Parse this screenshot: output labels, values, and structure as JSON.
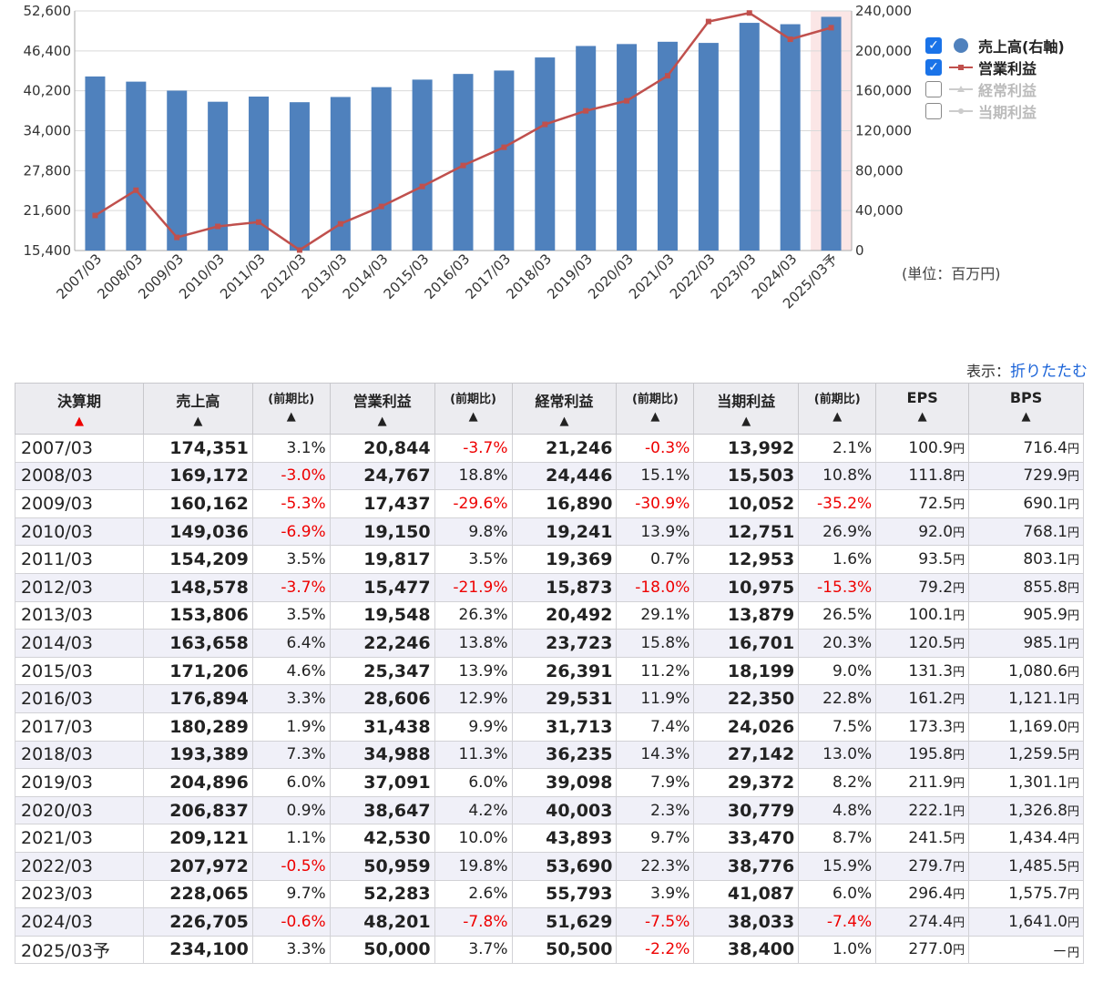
{
  "chart_data": {
    "type": "bar",
    "categories": [
      "2007/03",
      "2008/03",
      "2009/03",
      "2010/03",
      "2011/03",
      "2012/03",
      "2013/03",
      "2014/03",
      "2015/03",
      "2016/03",
      "2017/03",
      "2018/03",
      "2019/03",
      "2020/03",
      "2021/03",
      "2022/03",
      "2023/03",
      "2024/03",
      "2025/03予"
    ],
    "series": [
      {
        "name": "売上高(右軸)",
        "type": "bar",
        "axis": "right",
        "color": "#4f81bd",
        "values": [
          174351,
          169172,
          160162,
          149036,
          154209,
          148578,
          153806,
          163658,
          171206,
          176894,
          180289,
          193389,
          204896,
          206837,
          209121,
          207972,
          228065,
          226705,
          234100
        ]
      },
      {
        "name": "営業利益",
        "type": "line",
        "axis": "left",
        "color": "#c0504d",
        "values": [
          20844,
          24767,
          17437,
          19150,
          19817,
          15477,
          19548,
          22246,
          25347,
          28606,
          31438,
          34988,
          37091,
          38647,
          42530,
          50959,
          52283,
          48201,
          50000
        ]
      },
      {
        "name": "経常利益",
        "type": "line",
        "axis": "left",
        "visible": false
      },
      {
        "name": "当期利益",
        "type": "line",
        "axis": "left",
        "visible": false
      }
    ],
    "left_ticks": [
      "52,600",
      "46,400",
      "40,200",
      "34,000",
      "27,800",
      "21,600",
      "15,400"
    ],
    "right_ticks": [
      "240,000",
      "200,000",
      "160,000",
      "120,000",
      "80,000",
      "40,000",
      "0"
    ],
    "left_range": [
      15400,
      52600
    ],
    "right_range": [
      0,
      240000
    ],
    "forecast_highlight": "2025/03予",
    "unit_note": "(単位：百万円)",
    "legend_placement": "right"
  },
  "legend": [
    {
      "label": "売上高(右軸)",
      "checked": true,
      "icon": "circle-icon",
      "color": "#4f81bd"
    },
    {
      "label": "営業利益",
      "checked": true,
      "icon": "line-marker-icon",
      "color": "#c0504d"
    },
    {
      "label": "経常利益",
      "checked": false,
      "icon": "line-marker-icon",
      "color": "#cccccc"
    },
    {
      "label": "当期利益",
      "checked": false,
      "icon": "line-marker-icon",
      "color": "#cccccc"
    }
  ],
  "display": {
    "label": "表示：",
    "toggle_link": "折りたたむ"
  },
  "table": {
    "headers": [
      {
        "label": "決算期",
        "arrow": "▲",
        "arrow_color": "red",
        "small": false
      },
      {
        "label": "売上高",
        "arrow": "▲",
        "small": false
      },
      {
        "label": "(前期比)",
        "arrow": "▲",
        "small": true
      },
      {
        "label": "営業利益",
        "arrow": "▲",
        "small": false
      },
      {
        "label": "(前期比)",
        "arrow": "▲",
        "small": true
      },
      {
        "label": "経常利益",
        "arrow": "▲",
        "small": false
      },
      {
        "label": "(前期比)",
        "arrow": "▲",
        "small": true
      },
      {
        "label": "当期利益",
        "arrow": "▲",
        "small": false
      },
      {
        "label": "(前期比)",
        "arrow": "▲",
        "small": true
      },
      {
        "label": "EPS",
        "arrow": "▲",
        "small": false
      },
      {
        "label": "BPS",
        "arrow": "▲",
        "small": false
      }
    ],
    "unit_yen": "円",
    "rows": [
      {
        "period": "2007/03",
        "sales": "174,351",
        "sales_chg": "3.1%",
        "op": "20,844",
        "op_chg": "-3.7%",
        "ord": "21,246",
        "ord_chg": "-0.3%",
        "net": "13,992",
        "net_chg": "2.1%",
        "eps": "100.9",
        "bps": "716.4"
      },
      {
        "period": "2008/03",
        "sales": "169,172",
        "sales_chg": "-3.0%",
        "op": "24,767",
        "op_chg": "18.8%",
        "ord": "24,446",
        "ord_chg": "15.1%",
        "net": "15,503",
        "net_chg": "10.8%",
        "eps": "111.8",
        "bps": "729.9"
      },
      {
        "period": "2009/03",
        "sales": "160,162",
        "sales_chg": "-5.3%",
        "op": "17,437",
        "op_chg": "-29.6%",
        "ord": "16,890",
        "ord_chg": "-30.9%",
        "net": "10,052",
        "net_chg": "-35.2%",
        "eps": "72.5",
        "bps": "690.1"
      },
      {
        "period": "2010/03",
        "sales": "149,036",
        "sales_chg": "-6.9%",
        "op": "19,150",
        "op_chg": "9.8%",
        "ord": "19,241",
        "ord_chg": "13.9%",
        "net": "12,751",
        "net_chg": "26.9%",
        "eps": "92.0",
        "bps": "768.1"
      },
      {
        "period": "2011/03",
        "sales": "154,209",
        "sales_chg": "3.5%",
        "op": "19,817",
        "op_chg": "3.5%",
        "ord": "19,369",
        "ord_chg": "0.7%",
        "net": "12,953",
        "net_chg": "1.6%",
        "eps": "93.5",
        "bps": "803.1"
      },
      {
        "period": "2012/03",
        "sales": "148,578",
        "sales_chg": "-3.7%",
        "op": "15,477",
        "op_chg": "-21.9%",
        "ord": "15,873",
        "ord_chg": "-18.0%",
        "net": "10,975",
        "net_chg": "-15.3%",
        "eps": "79.2",
        "bps": "855.8"
      },
      {
        "period": "2013/03",
        "sales": "153,806",
        "sales_chg": "3.5%",
        "op": "19,548",
        "op_chg": "26.3%",
        "ord": "20,492",
        "ord_chg": "29.1%",
        "net": "13,879",
        "net_chg": "26.5%",
        "eps": "100.1",
        "bps": "905.9"
      },
      {
        "period": "2014/03",
        "sales": "163,658",
        "sales_chg": "6.4%",
        "op": "22,246",
        "op_chg": "13.8%",
        "ord": "23,723",
        "ord_chg": "15.8%",
        "net": "16,701",
        "net_chg": "20.3%",
        "eps": "120.5",
        "bps": "985.1"
      },
      {
        "period": "2015/03",
        "sales": "171,206",
        "sales_chg": "4.6%",
        "op": "25,347",
        "op_chg": "13.9%",
        "ord": "26,391",
        "ord_chg": "11.2%",
        "net": "18,199",
        "net_chg": "9.0%",
        "eps": "131.3",
        "bps": "1,080.6"
      },
      {
        "period": "2016/03",
        "sales": "176,894",
        "sales_chg": "3.3%",
        "op": "28,606",
        "op_chg": "12.9%",
        "ord": "29,531",
        "ord_chg": "11.9%",
        "net": "22,350",
        "net_chg": "22.8%",
        "eps": "161.2",
        "bps": "1,121.1"
      },
      {
        "period": "2017/03",
        "sales": "180,289",
        "sales_chg": "1.9%",
        "op": "31,438",
        "op_chg": "9.9%",
        "ord": "31,713",
        "ord_chg": "7.4%",
        "net": "24,026",
        "net_chg": "7.5%",
        "eps": "173.3",
        "bps": "1,169.0"
      },
      {
        "period": "2018/03",
        "sales": "193,389",
        "sales_chg": "7.3%",
        "op": "34,988",
        "op_chg": "11.3%",
        "ord": "36,235",
        "ord_chg": "14.3%",
        "net": "27,142",
        "net_chg": "13.0%",
        "eps": "195.8",
        "bps": "1,259.5"
      },
      {
        "period": "2019/03",
        "sales": "204,896",
        "sales_chg": "6.0%",
        "op": "37,091",
        "op_chg": "6.0%",
        "ord": "39,098",
        "ord_chg": "7.9%",
        "net": "29,372",
        "net_chg": "8.2%",
        "eps": "211.9",
        "bps": "1,301.1"
      },
      {
        "period": "2020/03",
        "sales": "206,837",
        "sales_chg": "0.9%",
        "op": "38,647",
        "op_chg": "4.2%",
        "ord": "40,003",
        "ord_chg": "2.3%",
        "net": "30,779",
        "net_chg": "4.8%",
        "eps": "222.1",
        "bps": "1,326.8"
      },
      {
        "period": "2021/03",
        "sales": "209,121",
        "sales_chg": "1.1%",
        "op": "42,530",
        "op_chg": "10.0%",
        "ord": "43,893",
        "ord_chg": "9.7%",
        "net": "33,470",
        "net_chg": "8.7%",
        "eps": "241.5",
        "bps": "1,434.4"
      },
      {
        "period": "2022/03",
        "sales": "207,972",
        "sales_chg": "-0.5%",
        "op": "50,959",
        "op_chg": "19.8%",
        "ord": "53,690",
        "ord_chg": "22.3%",
        "net": "38,776",
        "net_chg": "15.9%",
        "eps": "279.7",
        "bps": "1,485.5"
      },
      {
        "period": "2023/03",
        "sales": "228,065",
        "sales_chg": "9.7%",
        "op": "52,283",
        "op_chg": "2.6%",
        "ord": "55,793",
        "ord_chg": "3.9%",
        "net": "41,087",
        "net_chg": "6.0%",
        "eps": "296.4",
        "bps": "1,575.7"
      },
      {
        "period": "2024/03",
        "sales": "226,705",
        "sales_chg": "-0.6%",
        "op": "48,201",
        "op_chg": "-7.8%",
        "ord": "51,629",
        "ord_chg": "-7.5%",
        "net": "38,033",
        "net_chg": "-7.4%",
        "eps": "274.4",
        "bps": "1,641.0"
      },
      {
        "period": "2025/03予",
        "sales": "234,100",
        "sales_chg": "3.3%",
        "op": "50,000",
        "op_chg": "3.7%",
        "ord": "50,500",
        "ord_chg": "-2.2%",
        "net": "38,400",
        "net_chg": "1.0%",
        "eps": "277.0",
        "bps": "－"
      }
    ]
  }
}
